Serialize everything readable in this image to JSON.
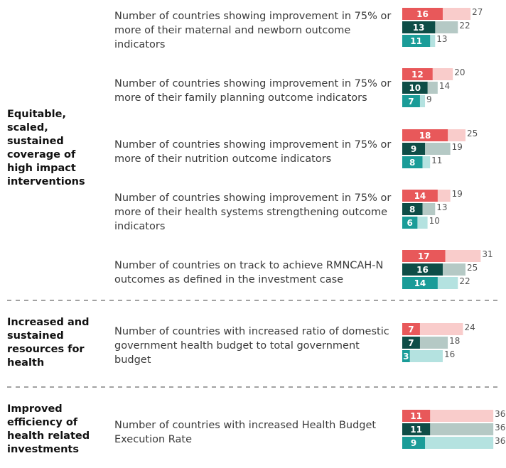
{
  "groups": [
    {
      "label": "Equitable, scaled, sustained coverage of high impact interventions",
      "items": [
        {
          "description": "Number of countries showing improvement in 75% or more of their maternal and newborn outcome indicators",
          "bars": [
            {
              "value": 16,
              "total": 27
            },
            {
              "value": 13,
              "total": 22
            },
            {
              "value": 11,
              "total": 13
            }
          ]
        },
        {
          "description": "Number of countries showing improvement in 75% or more of their family planning outcome indicators",
          "bars": [
            {
              "value": 12,
              "total": 20
            },
            {
              "value": 10,
              "total": 14
            },
            {
              "value": 7,
              "total": 9
            }
          ]
        },
        {
          "description": "Number of countries showing improvement in 75% or more of their nutrition outcome indicators",
          "bars": [
            {
              "value": 18,
              "total": 25
            },
            {
              "value": 9,
              "total": 19
            },
            {
              "value": 8,
              "total": 11
            }
          ]
        },
        {
          "description": "Number of countries showing improvement in 75% or more of their health systems strengthening outcome indicators",
          "bars": [
            {
              "value": 14,
              "total": 19
            },
            {
              "value": 8,
              "total": 13
            },
            {
              "value": 6,
              "total": 10
            }
          ]
        },
        {
          "description": "Number of countries on track to achieve RMNCAH-N outcomes as defined in the investment case",
          "bars": [
            {
              "value": 17,
              "total": 31
            },
            {
              "value": 16,
              "total": 25
            },
            {
              "value": 14,
              "total": 22
            }
          ]
        }
      ]
    },
    {
      "label": "Increased and sustained resources for health",
      "items": [
        {
          "description": "Number of countries with increased ratio of domestic government health budget to total government budget",
          "bars": [
            {
              "value": 7,
              "total": 24
            },
            {
              "value": 7,
              "total": 18
            },
            {
              "value": 3,
              "total": 16
            }
          ]
        }
      ]
    },
    {
      "label": "Improved efficiency of health related investments",
      "items": [
        {
          "description": "Number of countries with increased Health Budget Execution Rate",
          "bars": [
            {
              "value": 11,
              "total": 36
            },
            {
              "value": 11,
              "total": 36
            },
            {
              "value": 9,
              "total": 36
            }
          ]
        }
      ]
    }
  ],
  "colors": [
    {
      "dark": "#e8585a",
      "light": "#f9cccb"
    },
    {
      "dark": "#0e4d47",
      "light": "#b5c9c5"
    },
    {
      "dark": "#1a9c98",
      "light": "#b4e2e0"
    }
  ]
}
